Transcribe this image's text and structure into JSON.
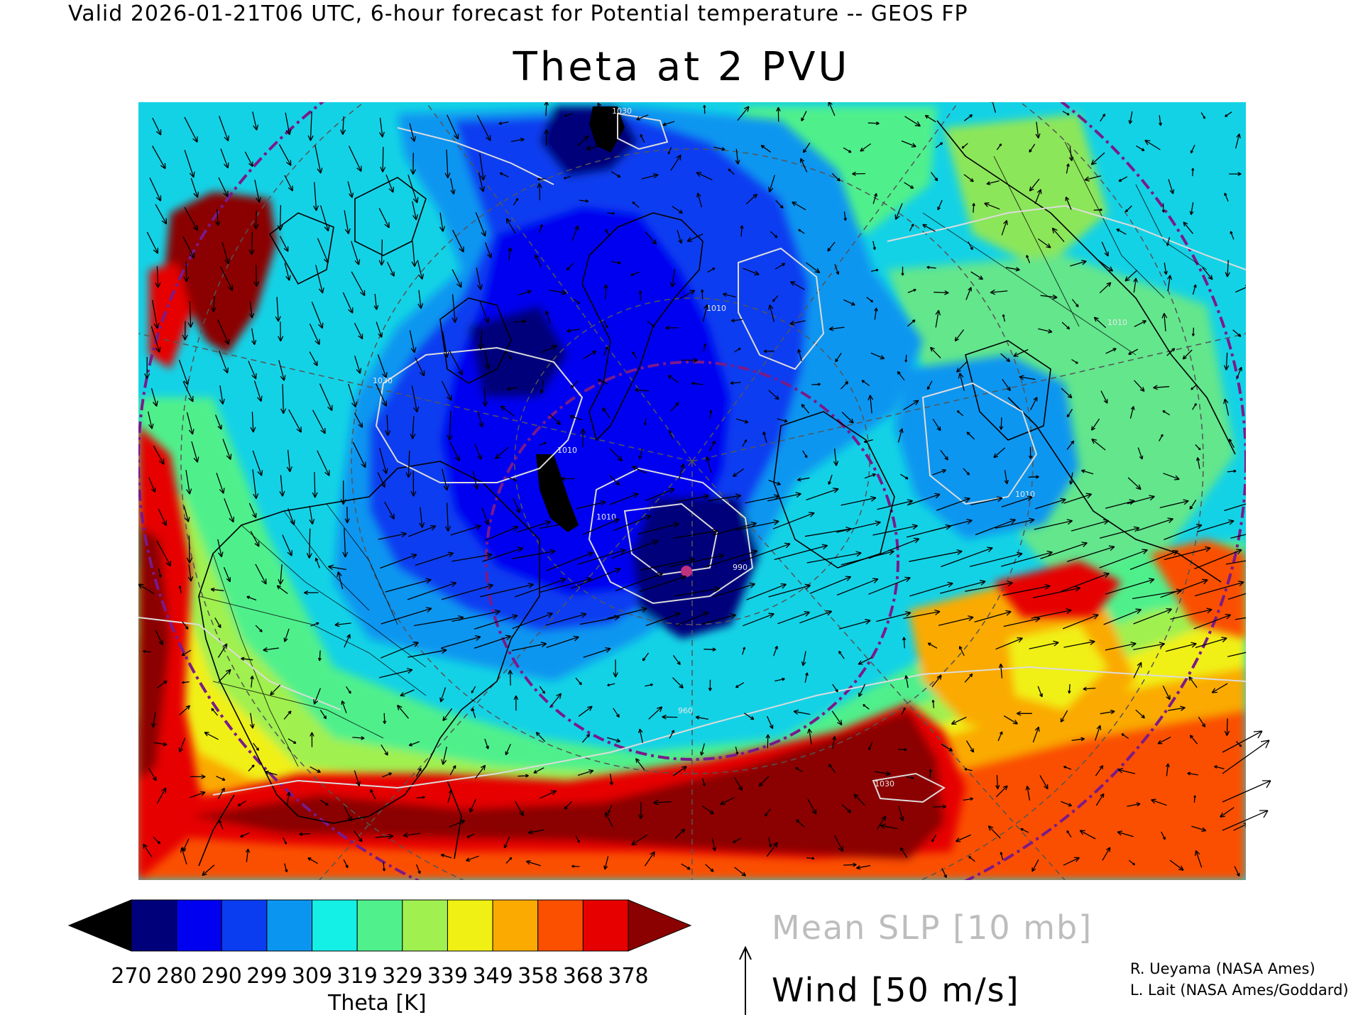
{
  "header": {
    "line": "Valid 2026-01-21T06 UTC, 6-hour forecast for Potential temperature -- GEOS FP",
    "title": "Theta at 2 PVU"
  },
  "map": {
    "projection": "north polar stereographic",
    "shaded_field": "Theta at 2 PVU",
    "contour_field": "Mean SLP",
    "vector_field": "Wind",
    "visible_contour_labels": [
      "1030",
      "1010",
      "1030",
      "1010",
      "1010",
      "990",
      "1010",
      "1010",
      "1030",
      "960"
    ]
  },
  "colorbar": {
    "title": "Theta [K]",
    "ticks": [
      "270",
      "280",
      "290",
      "299",
      "309",
      "319",
      "329",
      "339",
      "349",
      "358",
      "368",
      "378"
    ],
    "under_color": "#000000",
    "over_color": "#8b0000",
    "colors": [
      "#00007a",
      "#0000f0",
      "#0a3cf0",
      "#0a96f0",
      "#14f0e6",
      "#50f08c",
      "#a0f050",
      "#f0f014",
      "#faaa00",
      "#fa5000",
      "#e60000"
    ]
  },
  "legend": {
    "slp": "Mean SLP [10 mb]",
    "wind": "Wind [50 m/s]"
  },
  "credits": {
    "line1": "R. Ueyama (NASA Ames)",
    "line2": "L. Lait (NASA Ames/Goddard)"
  }
}
